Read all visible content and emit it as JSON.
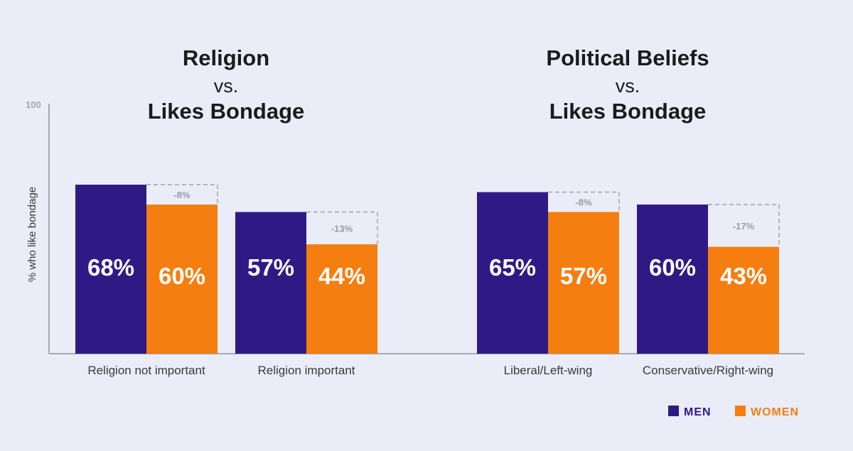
{
  "colors": {
    "background": "#eaecf8",
    "men": "#2f1a85",
    "women": "#f47e10",
    "axis": "#8f91a0",
    "gap_outline": "#a0a2b2",
    "bar_text": "#ffffff",
    "diff_text": "#9a9aa6"
  },
  "chart_data": {
    "type": "bar",
    "y_axis": {
      "label": "% who like bondage",
      "max_label": "100",
      "ylim": [
        0,
        100
      ]
    },
    "legend": {
      "position": "bottom-right",
      "items": [
        "MEN",
        "WOMEN"
      ]
    },
    "series_names": [
      "MEN",
      "WOMEN"
    ],
    "panels": [
      {
        "title_lines": [
          "Religion",
          "vs.",
          "Likes Bondage"
        ],
        "groups": [
          {
            "category": "Religion not important",
            "men": 68,
            "women": 60,
            "men_label": "68%",
            "women_label": "60%",
            "diff_label": "-8%"
          },
          {
            "category": "Religion important",
            "men": 57,
            "women": 44,
            "men_label": "57%",
            "women_label": "44%",
            "diff_label": "-13%"
          }
        ]
      },
      {
        "title_lines": [
          "Political Beliefs",
          "vs.",
          "Likes Bondage"
        ],
        "groups": [
          {
            "category": "Liberal/Left-wing",
            "men": 65,
            "women": 57,
            "men_label": "65%",
            "women_label": "57%",
            "diff_label": "-8%"
          },
          {
            "category": "Conservative/Right-wing",
            "men": 60,
            "women": 43,
            "men_label": "60%",
            "women_label": "43%",
            "diff_label": "-17%"
          }
        ]
      }
    ]
  }
}
